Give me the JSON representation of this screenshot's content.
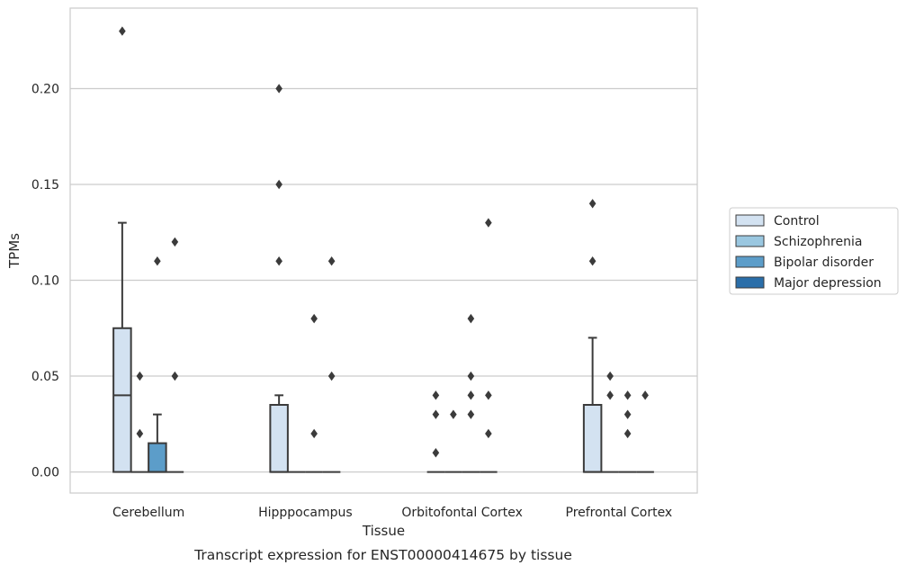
{
  "chart_data": {
    "type": "box",
    "title": "",
    "caption": "Transcript expression for ENST00000414675 by tissue",
    "xlabel": "Tissue",
    "ylabel": "TPMs",
    "ylim": [
      -0.011,
      0.242
    ],
    "yticks": [
      0.0,
      0.05,
      0.1,
      0.15,
      0.2
    ],
    "ytick_labels": [
      "0.00",
      "0.05",
      "0.10",
      "0.15",
      "0.20"
    ],
    "grid": "horizontal",
    "legend_position": "right",
    "categories": [
      "Cerebellum",
      "Hipppocampus",
      "Orbitofontal Cortex",
      "Prefrontal Cortex"
    ],
    "series": [
      {
        "name": "Control",
        "color": "#d3e2f1",
        "boxes": [
          {
            "q1": 0.0,
            "median": 0.04,
            "q3": 0.075,
            "whisker_low": 0.0,
            "whisker_high": 0.13,
            "outliers": [
              0.23
            ]
          },
          {
            "q1": 0.0,
            "median": 0.0,
            "q3": 0.035,
            "whisker_low": 0.0,
            "whisker_high": 0.04,
            "outliers": [
              0.2,
              0.15,
              0.11
            ]
          },
          {
            "q1": 0.0,
            "median": 0.0,
            "q3": 0.0,
            "whisker_low": 0.0,
            "whisker_high": 0.0,
            "outliers": [
              0.04,
              0.03,
              0.01
            ]
          },
          {
            "q1": 0.0,
            "median": 0.0,
            "q3": 0.035,
            "whisker_low": 0.0,
            "whisker_high": 0.07,
            "outliers": [
              0.14,
              0.11
            ]
          }
        ]
      },
      {
        "name": "Schizophrenia",
        "color": "#9ac7e0",
        "boxes": [
          {
            "q1": 0.0,
            "median": 0.0,
            "q3": 0.0,
            "whisker_low": 0.0,
            "whisker_high": 0.0,
            "outliers": [
              0.05,
              0.02
            ]
          },
          {
            "q1": 0.0,
            "median": 0.0,
            "q3": 0.0,
            "whisker_low": 0.0,
            "whisker_high": 0.0,
            "outliers": []
          },
          {
            "q1": 0.0,
            "median": 0.0,
            "q3": 0.0,
            "whisker_low": 0.0,
            "whisker_high": 0.0,
            "outliers": [
              0.03
            ]
          },
          {
            "q1": 0.0,
            "median": 0.0,
            "q3": 0.0,
            "whisker_low": 0.0,
            "whisker_high": 0.0,
            "outliers": [
              0.05,
              0.04
            ]
          }
        ]
      },
      {
        "name": "Bipolar disorder",
        "color": "#5c9dc9",
        "boxes": [
          {
            "q1": 0.0,
            "median": 0.0,
            "q3": 0.015,
            "whisker_low": 0.0,
            "whisker_high": 0.03,
            "outliers": [
              0.11
            ]
          },
          {
            "q1": 0.0,
            "median": 0.0,
            "q3": 0.0,
            "whisker_low": 0.0,
            "whisker_high": 0.0,
            "outliers": [
              0.08,
              0.02
            ]
          },
          {
            "q1": 0.0,
            "median": 0.0,
            "q3": 0.0,
            "whisker_low": 0.0,
            "whisker_high": 0.0,
            "outliers": [
              0.08,
              0.05,
              0.04,
              0.03
            ]
          },
          {
            "q1": 0.0,
            "median": 0.0,
            "q3": 0.0,
            "whisker_low": 0.0,
            "whisker_high": 0.0,
            "outliers": [
              0.04,
              0.03,
              0.02
            ]
          }
        ]
      },
      {
        "name": "Major depression",
        "color": "#2a6ea9",
        "boxes": [
          {
            "q1": 0.0,
            "median": 0.0,
            "q3": 0.0,
            "whisker_low": 0.0,
            "whisker_high": 0.0,
            "outliers": [
              0.12,
              0.05
            ]
          },
          {
            "q1": 0.0,
            "median": 0.0,
            "q3": 0.0,
            "whisker_low": 0.0,
            "whisker_high": 0.0,
            "outliers": [
              0.11,
              0.05
            ]
          },
          {
            "q1": 0.0,
            "median": 0.0,
            "q3": 0.0,
            "whisker_low": 0.0,
            "whisker_high": 0.0,
            "outliers": [
              0.13,
              0.04,
              0.02
            ]
          },
          {
            "q1": 0.0,
            "median": 0.0,
            "q3": 0.0,
            "whisker_low": 0.0,
            "whisker_high": 0.0,
            "outliers": [
              0.04
            ]
          }
        ]
      }
    ]
  }
}
